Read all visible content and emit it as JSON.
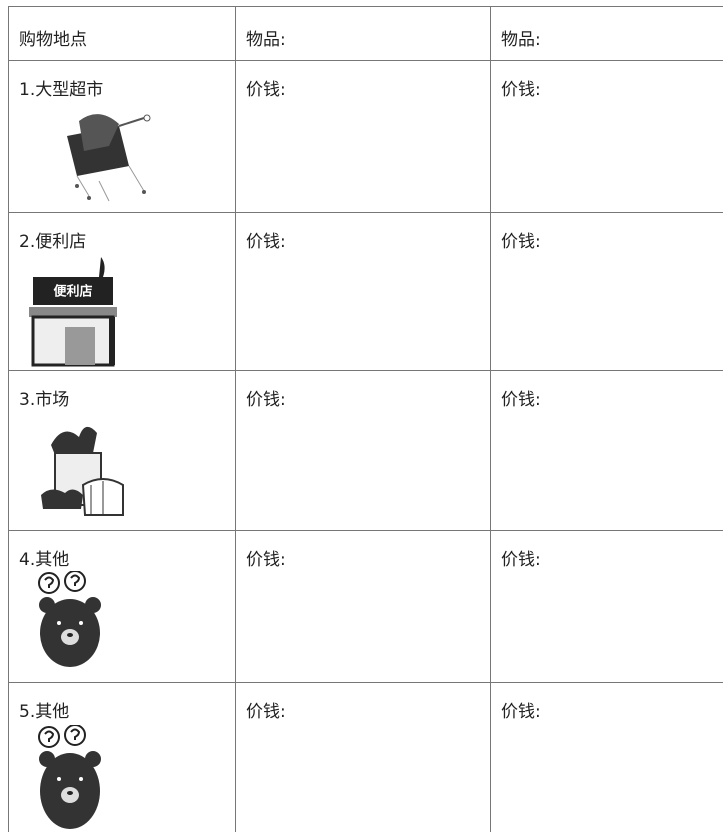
{
  "table": {
    "header": [
      "购物地点",
      "物品:",
      "物品:"
    ],
    "rows": [
      {
        "place": "1.大型超市",
        "cells": [
          "价钱:",
          "价钱:"
        ]
      },
      {
        "place": "2.便利店",
        "sign": "便利店",
        "cells": [
          "价钱:",
          "价钱:"
        ]
      },
      {
        "place": "3.市场",
        "cells": [
          "价钱:",
          "价钱:"
        ]
      },
      {
        "place": "4.其他",
        "cells": [
          "价钱:",
          "价钱:"
        ]
      },
      {
        "place": "5.其他",
        "cells": [
          "价钱:",
          "价钱:"
        ]
      }
    ]
  }
}
